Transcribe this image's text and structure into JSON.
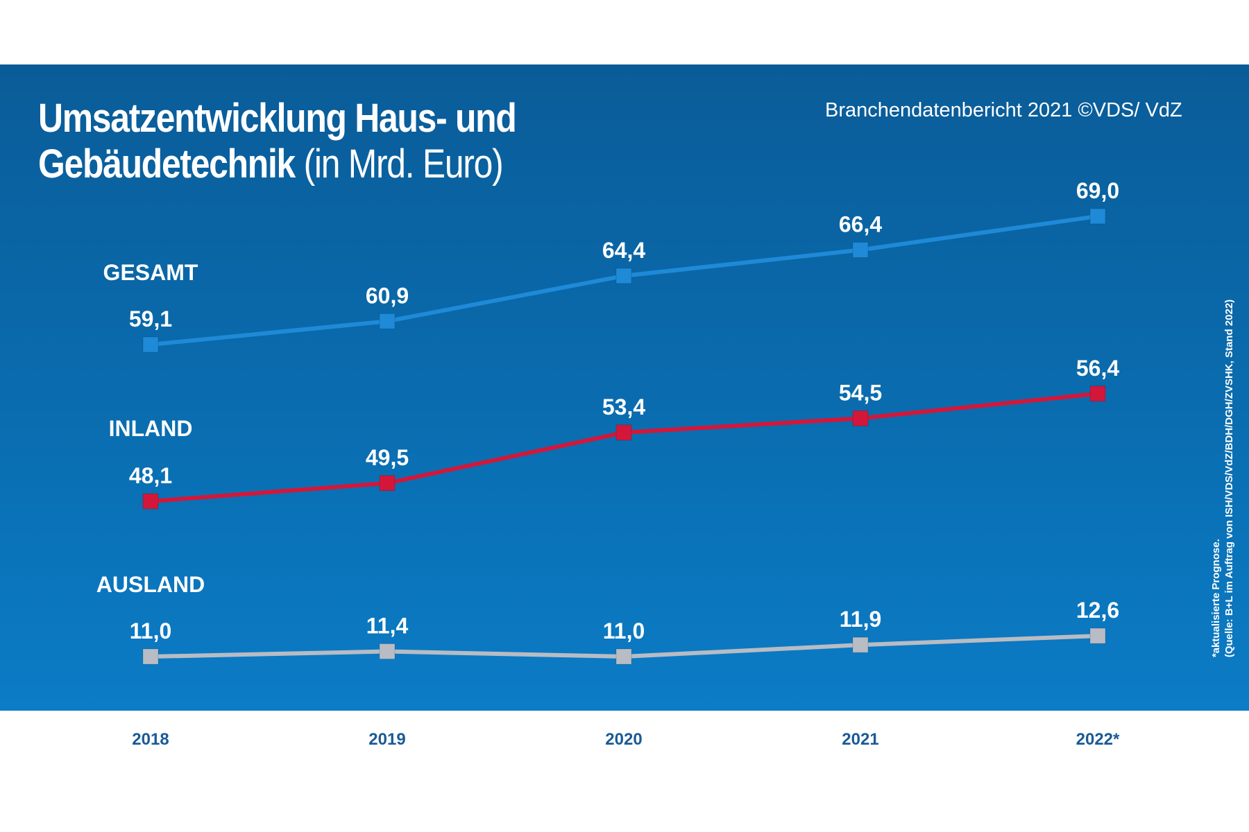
{
  "chart_data": {
    "type": "line",
    "title": "Umsatzentwicklung Haus- und Gebäudetechnik",
    "title_line1": "Umsatzentwicklung Haus- und",
    "title_line2": "Gebäudetechnik",
    "unit": "(in Mrd. Euro)",
    "source_top": "Branchendatenbericht 2021 ©VDS/ VdZ",
    "footnote_line1": "*aktualisierte Prognose.",
    "footnote_line2": "(Quelle: B+L im Auftrag von ISH/VDS/VdZ/BDH/DGH/ZVSHK, Stand 2022)",
    "categories": [
      "2018",
      "2019",
      "2020",
      "2021",
      "2022*"
    ],
    "series": [
      {
        "name": "GESAMT",
        "values": [
          59.1,
          60.9,
          64.4,
          66.4,
          69.0
        ],
        "labels": [
          "59,1",
          "60,9",
          "64,4",
          "66,4",
          "69,0"
        ],
        "color": "#1e8ad8"
      },
      {
        "name": "INLAND",
        "values": [
          48.1,
          49.5,
          53.4,
          54.5,
          56.4
        ],
        "labels": [
          "48,1",
          "49,5",
          "53,4",
          "54,5",
          "56,4"
        ],
        "color": "#d3173a"
      },
      {
        "name": "AUSLAND",
        "values": [
          11.0,
          11.4,
          11.0,
          11.9,
          12.6
        ],
        "labels": [
          "11,0",
          "11,4",
          "11,0",
          "11,9",
          "12,6"
        ],
        "color": "#b8bcc4"
      }
    ],
    "legend": "inline-left",
    "grid": false,
    "background_color": "#0a6db0"
  }
}
